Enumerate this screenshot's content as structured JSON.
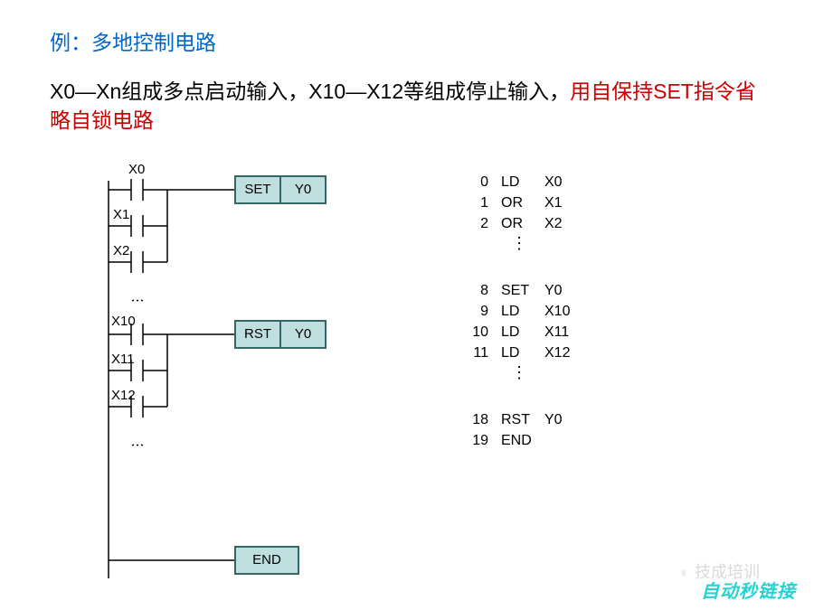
{
  "title": "例：多地控制电路",
  "desc_black": "X0—Xn组成多点启动输入，X10—X12等组成停止输入，",
  "desc_red": "用自保持SET指令省略自锁电路",
  "ladder": {
    "rung1": {
      "contacts": [
        "X0",
        "X1",
        "X2"
      ],
      "inst_op": "SET",
      "inst_arg": "Y0"
    },
    "rung2": {
      "contacts": [
        "X10",
        "X11",
        "X12"
      ],
      "inst_op": "RST",
      "inst_arg": "Y0"
    },
    "rung3": {
      "inst_op": "END"
    }
  },
  "box_fill": "#bfdfdf",
  "box_stroke": "#336666",
  "code": [
    {
      "n": "0",
      "op": "LD",
      "arg": "X0"
    },
    {
      "n": "1",
      "op": "OR",
      "arg": "X1"
    },
    {
      "n": "2",
      "op": "OR",
      "arg": "X2"
    }
  ],
  "code2": [
    {
      "n": "8",
      "op": "SET",
      "arg": "Y0"
    },
    {
      "n": "9",
      "op": "LD",
      "arg": "X10"
    },
    {
      "n": "10",
      "op": "LD",
      "arg": "X11"
    },
    {
      "n": "11",
      "op": "LD",
      "arg": "X12"
    }
  ],
  "code3": [
    {
      "n": "18",
      "op": "RST",
      "arg": "Y0"
    },
    {
      "n": "19",
      "op": "END",
      "arg": ""
    }
  ],
  "watermark": "自动秒链接",
  "wechat_text": "技成培训"
}
